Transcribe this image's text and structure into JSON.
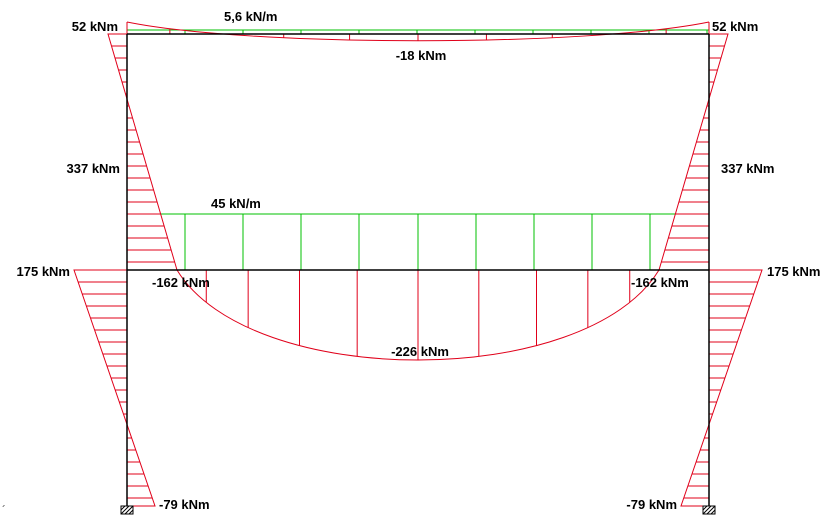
{
  "colors": {
    "frame": "#000000",
    "distributed_load": "#00c000",
    "bending_moment": "#e0001a",
    "labels": "#000000",
    "background": "#ffffff"
  },
  "loads": {
    "top_beam": "5,6 kN/m",
    "bottom_beam": "45 kN/m"
  },
  "moments": {
    "top_left_corner": "52 kNm",
    "top_right_corner": "52 kNm",
    "top_midspan": "-18 kNm",
    "upper_left_column": "337 kNm",
    "upper_right_column": "337 kNm",
    "lower_left_column_top": "175 kNm",
    "lower_right_column_top": "175 kNm",
    "bottom_left_joint": "-162 kNm",
    "bottom_right_joint": "-162 kNm",
    "bottom_midspan": "-226 kNm",
    "left_base": "-79 kNm",
    "right_base": "-79 kNm"
  },
  "icons": {
    "left_support": "fixed-support-icon",
    "right_support": "fixed-support-icon"
  },
  "stray_mark": "´"
}
